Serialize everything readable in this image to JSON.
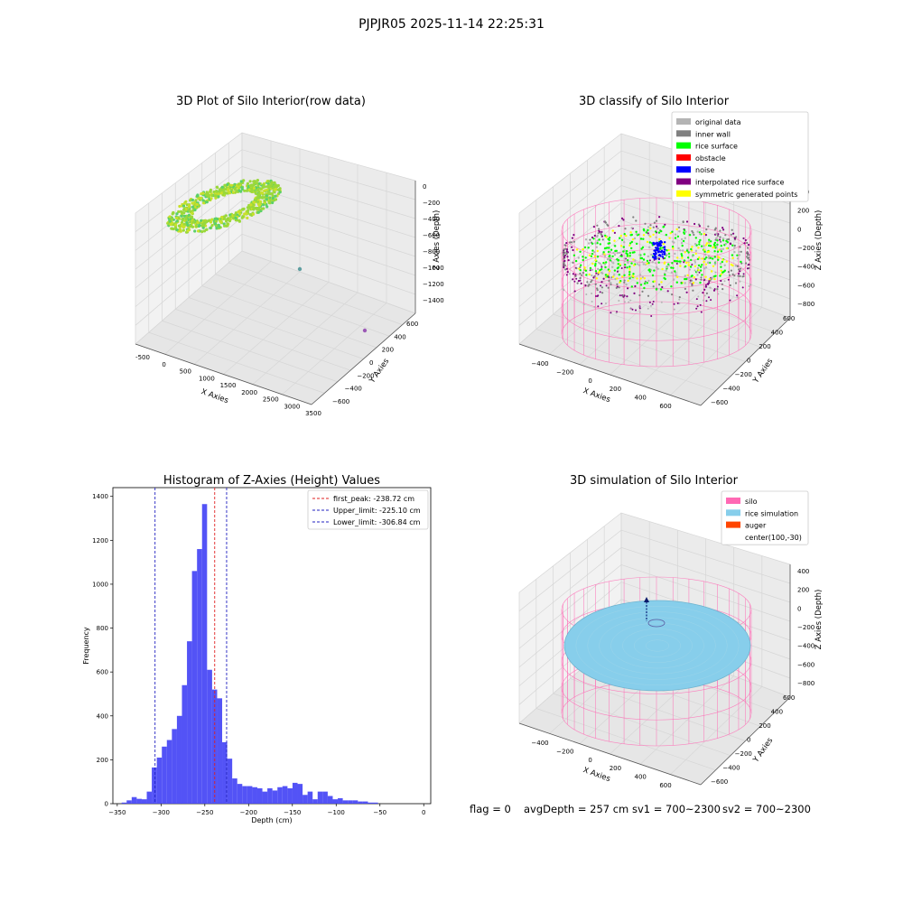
{
  "figure": {
    "suptitle": "PJPJR05 2025-11-14 22:25:31",
    "footer": {
      "flag": "flag = 0",
      "avg_depth": "avgDepth = 257 cm",
      "sv1": "sv1 = 700~2300",
      "sv2": "sv2 = 700~2300"
    }
  },
  "colors": {
    "hist_bar": "#4a4af5",
    "peak_line": "#e02020",
    "limit_line": "#2020c0",
    "pane": "#f2f2f2",
    "grid": "#d6d6d6",
    "original": "#b4b4b4",
    "inner_wall": "#808080",
    "rice_surface": "#00ff00",
    "obstacle": "#ff0000",
    "noise": "#0000ff",
    "interp": "#800080",
    "symmetric": "#ffff00",
    "silo": "#ff69b4",
    "rice_sim": "#87ceeb",
    "auger": "#ff4500"
  },
  "chart_data": [
    {
      "type": "scatter",
      "projection": "3d",
      "title": "3D Plot of Silo Interior(row data)",
      "xlabel": "X Axies",
      "ylabel": "Y Axies",
      "zlabel": "Z Axies (Depth)",
      "xlim": [
        -600,
        3600
      ],
      "ylim": [
        -700,
        700
      ],
      "zlim": [
        -1500,
        50
      ],
      "xticks": [
        "-500",
        "0",
        "500",
        "1000",
        "1500",
        "2000",
        "2500",
        "3000",
        "3500"
      ],
      "yticks": [
        "600",
        "400",
        "200",
        "0",
        "−200",
        "−400",
        "−600"
      ],
      "zticks": [
        "0",
        "−200",
        "−400",
        "−600",
        "−800",
        "−1000",
        "−1200",
        "−1400"
      ],
      "outliers": [
        {
          "x": 1700,
          "y": 0,
          "z": -1100
        },
        {
          "x": 3300,
          "y": 200,
          "z": -1250
        }
      ],
      "grid": true
    },
    {
      "type": "scatter",
      "projection": "3d",
      "title": "3D classify of Silo Interior",
      "xlabel": "X Axies",
      "ylabel": "Y Axies",
      "zlabel": "Z Axies (Depth)",
      "xlim": [
        -500,
        750
      ],
      "ylim": [
        -700,
        650
      ],
      "zlim": [
        -900,
        450
      ],
      "xticks": [
        "−400",
        "−200",
        "0",
        "200",
        "400",
        "600"
      ],
      "yticks": [
        "600",
        "400",
        "200",
        "0",
        "−200",
        "−400",
        "−600"
      ],
      "zticks": [
        "400",
        "200",
        "0",
        "−200",
        "−400",
        "−600",
        "−800"
      ],
      "legend": [
        {
          "label": "original data",
          "color": "#b4b4b4"
        },
        {
          "label": "inner wall",
          "color": "#808080"
        },
        {
          "label": "rice surface",
          "color": "#00ff00"
        },
        {
          "label": "obstacle",
          "color": "#ff0000"
        },
        {
          "label": "noise",
          "color": "#0000ff"
        },
        {
          "label": "interpolated rice surface",
          "color": "#800080"
        },
        {
          "label": "symmetric generated points",
          "color": "#ffff00"
        }
      ],
      "legend_loc": "upper right",
      "grid": true
    },
    {
      "type": "bar",
      "title": "Histogram of Z-Axies (Height) Values",
      "xlabel": "Depth (cm)",
      "ylabel": "Frequency",
      "xlim": [
        -355,
        8
      ],
      "ylim": [
        0,
        1440
      ],
      "xticks": [
        -350,
        -300,
        -250,
        -200,
        -150,
        -100,
        -50,
        0
      ],
      "yticks": [
        0,
        200,
        400,
        600,
        800,
        1000,
        1200,
        1400
      ],
      "bin_start": -345,
      "bin_width": 5.74,
      "values": [
        5,
        15,
        30,
        22,
        20,
        55,
        165,
        210,
        260,
        290,
        340,
        400,
        540,
        740,
        1060,
        1160,
        1365,
        610,
        520,
        480,
        280,
        205,
        115,
        90,
        80,
        80,
        75,
        70,
        55,
        70,
        60,
        75,
        80,
        70,
        95,
        90,
        40,
        55,
        20,
        55,
        55,
        35,
        20,
        25,
        15,
        15,
        15,
        10,
        10,
        5,
        5
      ],
      "vlines": [
        {
          "label": "first_peak: -238.72 cm",
          "x": -238.72,
          "color": "#e02020"
        },
        {
          "label": "Upper_limit: -225.10 cm",
          "x": -225.1,
          "color": "#2020c0"
        },
        {
          "label": "Lower_limit: -306.84 cm",
          "x": -306.84,
          "color": "#2020c0"
        }
      ],
      "legend_loc": "upper right"
    },
    {
      "type": "surface",
      "projection": "3d",
      "title": "3D simulation of Silo Interior",
      "xlabel": "X Axies",
      "ylabel": "Y Axies",
      "zlabel": "Z Axies (Depth)",
      "xlim": [
        -500,
        750
      ],
      "ylim": [
        -700,
        650
      ],
      "zlim": [
        -900,
        450
      ],
      "xticks": [
        "−400",
        "−200",
        "0",
        "200",
        "400",
        "600"
      ],
      "yticks": [
        "600",
        "400",
        "200",
        "0",
        "−200",
        "−400",
        "−600"
      ],
      "zticks": [
        "400",
        "200",
        "0",
        "−200",
        "−400",
        "−600",
        "−800"
      ],
      "legend": [
        {
          "label": "silo",
          "color": "#ff69b4"
        },
        {
          "label": "rice simulation",
          "color": "#87ceeb"
        },
        {
          "label": "auger",
          "color": "#ff4500"
        },
        {
          "label": "center(100,-30)",
          "color": ""
        }
      ],
      "legend_loc": "upper right",
      "grid": true
    }
  ]
}
